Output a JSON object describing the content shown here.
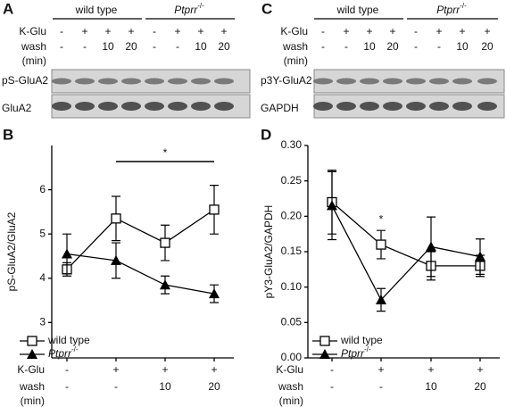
{
  "blot_panels": [
    {
      "letter": "A",
      "groups": [
        {
          "name": "wild type"
        },
        {
          "name": "Ptprr",
          "sup": "-/-"
        }
      ],
      "rows": [
        {
          "label": [
            "K-Glu"
          ],
          "cells": [
            "-",
            "+",
            "+",
            "+",
            "-",
            "+",
            "+",
            "+"
          ]
        },
        {
          "label": [
            "wash",
            "(min)"
          ],
          "cells": [
            "-",
            "-",
            "10",
            "20",
            "-",
            "-",
            "10",
            "20"
          ]
        }
      ],
      "blots": [
        "pS-GluA2",
        "GluA2"
      ]
    },
    {
      "letter": "C",
      "groups": [
        {
          "name": "wild type"
        },
        {
          "name": "Ptprr",
          "sup": "-/-"
        }
      ],
      "rows": [
        {
          "label": [
            "K-Glu"
          ],
          "cells": [
            "-",
            "+",
            "+",
            "+",
            "-",
            "+",
            "+",
            "+"
          ]
        },
        {
          "label": [
            "wash",
            "(min)"
          ],
          "cells": [
            "-",
            "-",
            "10",
            "20",
            "-",
            "-",
            "10",
            "20"
          ]
        }
      ],
      "blots": [
        "p3Y-GluA2",
        "GAPDH"
      ]
    }
  ],
  "chart_data": [
    {
      "type": "line",
      "letter": "B",
      "ylabel": "pS-GluA2/GluA2",
      "ylim": [
        2.2,
        7
      ],
      "yticks": [
        3,
        4,
        5,
        6
      ],
      "annotation": "*",
      "condition_rows": [
        {
          "label": [
            "K-Glu"
          ],
          "cells": [
            "-",
            "+",
            "+",
            "+"
          ]
        },
        {
          "label": [
            "wash",
            "(min)"
          ],
          "cells": [
            "-",
            "-",
            "10",
            "20"
          ]
        }
      ],
      "series": [
        {
          "name": "wild type",
          "marker": "square",
          "color": "#000000",
          "values": [
            4.2,
            5.35,
            4.8,
            5.55
          ],
          "errors": [
            0.15,
            0.5,
            0.4,
            0.55
          ]
        },
        {
          "name": "Ptprr",
          "name_sup": "-/-",
          "marker": "triangle",
          "color": "#000000",
          "values": [
            4.55,
            4.4,
            3.85,
            3.65
          ],
          "errors": [
            0.45,
            0.4,
            0.2,
            0.2
          ]
        }
      ]
    },
    {
      "type": "line",
      "letter": "D",
      "ylabel": "pY3-GluA2/GAPDH",
      "ylim": [
        0,
        0.3
      ],
      "yticks": [
        {
          "value": 0,
          "label": "0.00"
        },
        {
          "value": 0.05,
          "label": "0.05"
        },
        {
          "value": 0.1,
          "label": "0.10"
        },
        {
          "value": 0.15,
          "label": "0.15"
        },
        {
          "value": 0.2,
          "label": "0.20"
        },
        {
          "value": 0.25,
          "label": "0.25"
        },
        {
          "value": 0.3,
          "label": "0.30"
        }
      ],
      "annotation": "*",
      "condition_rows": [
        {
          "label": [
            "K-Glu"
          ],
          "cells": [
            "-",
            "+",
            "+",
            "+"
          ]
        },
        {
          "label": [
            "wash",
            "(min)"
          ],
          "cells": [
            "-",
            "-",
            "10",
            "20"
          ]
        }
      ],
      "series": [
        {
          "name": "wild type",
          "marker": "square",
          "color": "#000000",
          "values": [
            0.22,
            0.16,
            0.13,
            0.13
          ],
          "errors": [
            0.045,
            0.02,
            0.02,
            0.015
          ]
        },
        {
          "name": "Ptprr",
          "name_sup": "-/-",
          "marker": "triangle",
          "color": "#000000",
          "values": [
            0.215,
            0.082,
            0.157,
            0.143
          ],
          "errors": [
            0.048,
            0.016,
            0.042,
            0.025
          ]
        }
      ]
    }
  ]
}
